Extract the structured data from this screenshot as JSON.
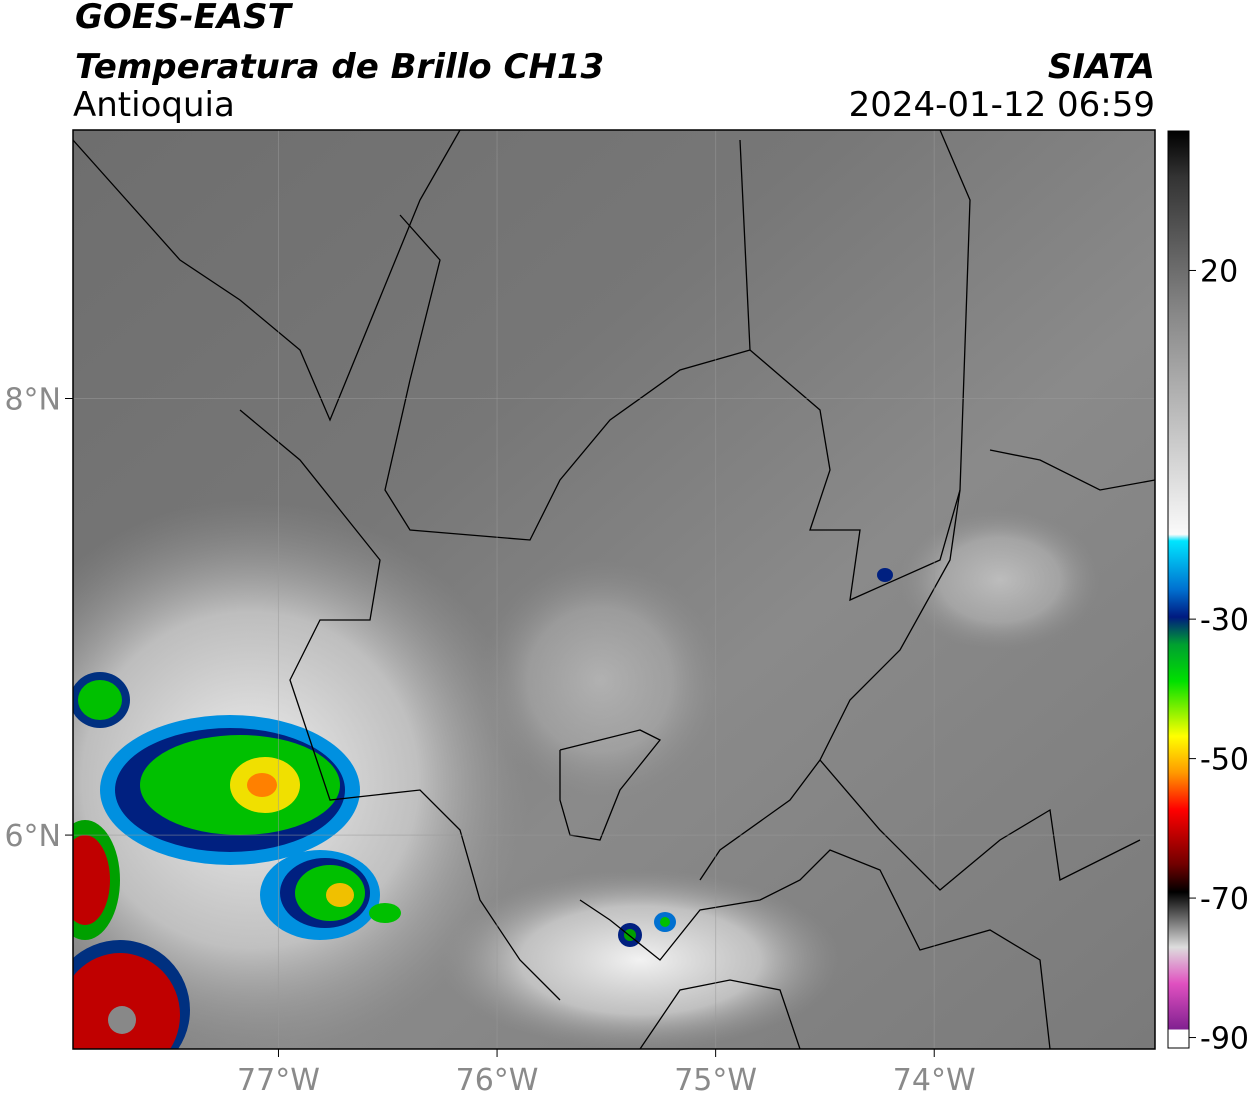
{
  "header": {
    "title": "GOES-EAST",
    "subtitle": "Temperatura de Brillo CH13",
    "source": "SIATA",
    "region": "Antioquia",
    "datetime": "2024-01-12 06:59"
  },
  "map": {
    "lonlim": [
      -77.94,
      -72.99
    ],
    "latlim": [
      5.02,
      9.23
    ],
    "lon_ticks": [
      {
        "value": -77,
        "label": "77°W"
      },
      {
        "value": -76,
        "label": "76°W"
      },
      {
        "value": -75,
        "label": "75°W"
      },
      {
        "value": -74,
        "label": "74°W"
      }
    ],
    "lat_ticks": [
      {
        "value": 8,
        "label": "8°N"
      },
      {
        "value": 6,
        "label": "6°N"
      }
    ]
  },
  "colorbar": {
    "lim": [
      -91.5,
      40
    ],
    "ticks": [
      20,
      -30,
      -50,
      -70,
      -90
    ]
  }
}
